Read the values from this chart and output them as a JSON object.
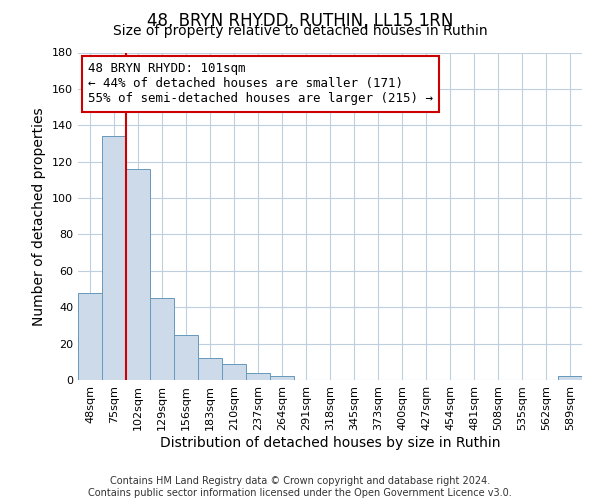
{
  "title": "48, BRYN RHYDD, RUTHIN, LL15 1RN",
  "subtitle": "Size of property relative to detached houses in Ruthin",
  "xlabel": "Distribution of detached houses by size in Ruthin",
  "ylabel": "Number of detached properties",
  "bar_labels": [
    "48sqm",
    "75sqm",
    "102sqm",
    "129sqm",
    "156sqm",
    "183sqm",
    "210sqm",
    "237sqm",
    "264sqm",
    "291sqm",
    "318sqm",
    "345sqm",
    "373sqm",
    "400sqm",
    "427sqm",
    "454sqm",
    "481sqm",
    "508sqm",
    "535sqm",
    "562sqm",
    "589sqm"
  ],
  "bar_values": [
    48,
    134,
    116,
    45,
    25,
    12,
    9,
    4,
    2,
    0,
    0,
    0,
    0,
    0,
    0,
    0,
    0,
    0,
    0,
    0,
    2
  ],
  "bar_color": "#ccdaea",
  "bar_edge_color": "#6699bb",
  "ylim": [
    0,
    180
  ],
  "yticks": [
    0,
    20,
    40,
    60,
    80,
    100,
    120,
    140,
    160,
    180
  ],
  "property_label": "48 BRYN RHYDD: 101sqm",
  "annotation_line1": "← 44% of detached houses are smaller (171)",
  "annotation_line2": "55% of semi-detached houses are larger (215) →",
  "vline_x_index": 2,
  "vline_color": "#cc0000",
  "box_color": "#cc0000",
  "footer_line1": "Contains HM Land Registry data © Crown copyright and database right 2024.",
  "footer_line2": "Contains public sector information licensed under the Open Government Licence v3.0.",
  "background_color": "#ffffff",
  "grid_color": "#c0cfe0",
  "title_fontsize": 12,
  "subtitle_fontsize": 10,
  "axis_label_fontsize": 10,
  "tick_fontsize": 8,
  "footer_fontsize": 7,
  "annotation_fontsize": 9
}
